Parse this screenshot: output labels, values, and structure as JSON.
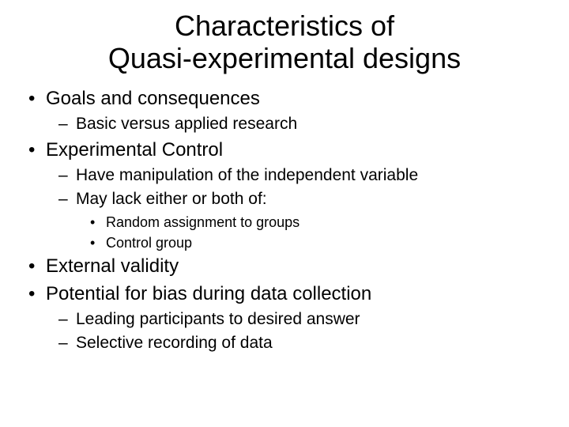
{
  "slide": {
    "title_line1": "Characteristics of",
    "title_line2": "Quasi-experimental designs",
    "bullets": {
      "item1": {
        "text": "Goals and consequences",
        "sub1": "Basic versus applied research"
      },
      "item2": {
        "text": "Experimental Control",
        "sub1": "Have manipulation of the independent variable",
        "sub2": "May lack either or both of:",
        "sub2_sub1": "Random assignment to groups",
        "sub2_sub2": "Control group"
      },
      "item3": {
        "text": "External validity"
      },
      "item4": {
        "text": "Potential for bias during data collection",
        "sub1": "Leading participants to desired answer",
        "sub2": "Selective recording of data"
      }
    }
  },
  "style": {
    "background_color": "#ffffff",
    "text_color": "#000000",
    "title_fontsize": 36,
    "level1_fontsize": 24,
    "level2_fontsize": 21,
    "level3_fontsize": 18,
    "font_family": "Arial"
  }
}
